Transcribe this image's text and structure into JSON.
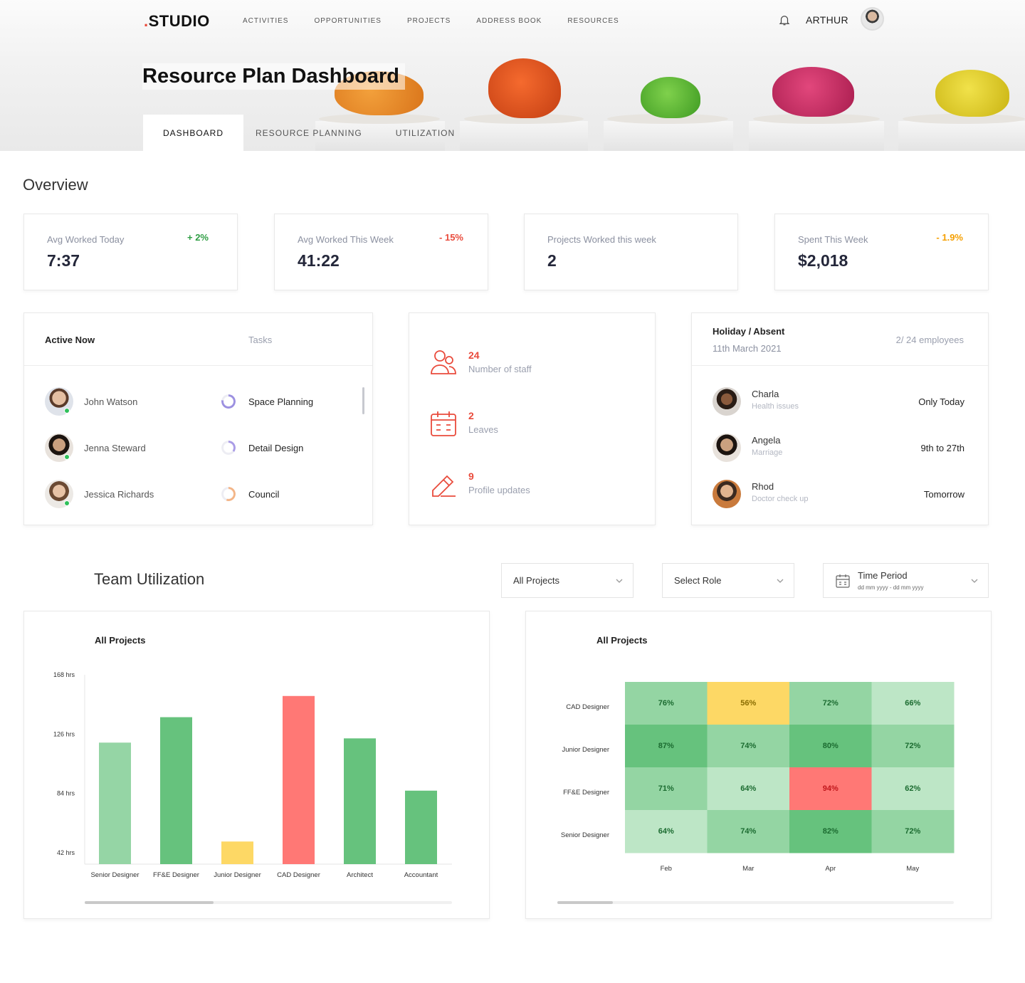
{
  "header": {
    "logo_prefix": ".",
    "logo_text": "STUDIO",
    "nav": [
      "ACTIVITIES",
      "OPPORTUNITIES",
      "PROJECTS",
      "ADDRESS BOOK",
      "RESOURCES"
    ],
    "username": "ARTHUR",
    "page_title": "Resource Plan Dashboard",
    "tabs": [
      "DASHBOARD",
      "RESOURCE PLANNING",
      "UTILIZATION"
    ],
    "active_tab": "DASHBOARD"
  },
  "overview": {
    "title": "Overview",
    "stats": [
      {
        "label": "Avg Worked Today",
        "value": "7:37",
        "change": "+ 2%",
        "change_color": "#2f9e44"
      },
      {
        "label": "Avg Worked This Week",
        "value": "41:22",
        "change": "- 15%",
        "change_color": "#e94b3c"
      },
      {
        "label": "Projects Worked this week",
        "value": "2",
        "change": "",
        "change_color": "#2f9e44"
      },
      {
        "label": "Spent This Week",
        "value": "$2,018",
        "change": "- 1.9%",
        "change_color": "#f59f00"
      }
    ]
  },
  "active_now": {
    "title": "Active Now",
    "tasks_header": "Tasks",
    "rows": [
      {
        "name": "John Watson",
        "task": "Space Planning",
        "ring_color": "#9b8fe0"
      },
      {
        "name": "Jenna Steward",
        "task": "Detail Design",
        "ring_color": "#a99be6"
      },
      {
        "name": "Jessica Richards",
        "task": "Council",
        "ring_color": "#f3b486"
      }
    ]
  },
  "staff_info": [
    {
      "icon": "users-icon",
      "number": "24",
      "label": "Number of staff"
    },
    {
      "icon": "calendar-icon",
      "number": "2",
      "label": "Leaves"
    },
    {
      "icon": "edit-icon",
      "number": "9",
      "label": "Profile updates"
    }
  ],
  "holiday": {
    "title": "Holiday / Absent",
    "date": "11th March 2021",
    "count": "2/ 24 employees",
    "rows": [
      {
        "name": "Charla",
        "reason": "Health issues",
        "when": "Only Today"
      },
      {
        "name": "Angela",
        "reason": "Marriage",
        "when": "9th to 27th"
      },
      {
        "name": "Rhod",
        "reason": "Doctor check up",
        "when": "Tomorrow"
      }
    ]
  },
  "utilization": {
    "title": "Team Utilization",
    "filters": {
      "projects": "All Projects",
      "role": "Select Role",
      "period_label": "Time Period",
      "period_placeholder": "dd mm yyyy - dd mm yyyy"
    },
    "bar_scroll_fraction": 0.35,
    "heat_scroll_fraction": 0.14
  },
  "chart_data": [
    {
      "type": "bar",
      "title": "All Projects",
      "categories": [
        "Senior Designer",
        "FF&E Designer",
        "Junior Designer",
        "CAD Designer",
        "Architect",
        "Accountant"
      ],
      "values": [
        120,
        138,
        50,
        153,
        123,
        86
      ],
      "colors": [
        "#95d5a5",
        "#66c27d",
        "#fdd865",
        "#ff7875",
        "#66c27d",
        "#66c27d"
      ],
      "yticks": [
        {
          "value": 168,
          "label": "168 hrs"
        },
        {
          "value": 126,
          "label": "126 hrs"
        },
        {
          "value": 84,
          "label": "84 hrs"
        },
        {
          "value": 42,
          "label": "42 hrs"
        }
      ],
      "ylim": [
        34,
        168
      ],
      "grid": false
    },
    {
      "type": "heatmap",
      "title": "All Projects",
      "rows": [
        "CAD Designer",
        "Junior Designer",
        "FF&E Designer",
        "Senior Designer"
      ],
      "columns": [
        "Feb",
        "Mar",
        "Apr",
        "May"
      ],
      "values": [
        [
          76,
          56,
          72,
          66
        ],
        [
          87,
          74,
          80,
          72
        ],
        [
          71,
          64,
          94,
          62
        ],
        [
          64,
          74,
          82,
          72
        ]
      ],
      "labels": [
        [
          "76%",
          "56%",
          "72%",
          "66%"
        ],
        [
          "87%",
          "74%",
          "80%",
          "72%"
        ],
        [
          "71%",
          "64%",
          "94%",
          "62%"
        ],
        [
          "64%",
          "74%",
          "82%",
          "72%"
        ]
      ],
      "cell_colors": [
        [
          "#94d5a3",
          "#fdd865",
          "#94d5a3",
          "#bde6c6"
        ],
        [
          "#66c27d",
          "#94d5a3",
          "#66c27d",
          "#94d5a3"
        ],
        [
          "#94d5a3",
          "#bde6c6",
          "#ff7875",
          "#bde6c6"
        ],
        [
          "#bde6c6",
          "#94d5a3",
          "#66c27d",
          "#94d5a3"
        ]
      ],
      "text_colors": [
        [
          "#1b6b30",
          "#8a6d00",
          "#1b6b30",
          "#1b6b30"
        ],
        [
          "#1b6b30",
          "#1b6b30",
          "#1b6b30",
          "#1b6b30"
        ],
        [
          "#1b6b30",
          "#1b6b30",
          "#c0161b",
          "#1b6b30"
        ],
        [
          "#1b6b30",
          "#1b6b30",
          "#1b6b30",
          "#1b6b30"
        ]
      ]
    }
  ]
}
